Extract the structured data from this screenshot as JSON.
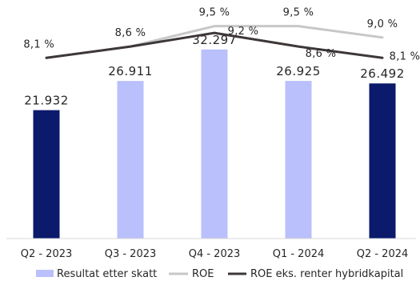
{
  "chart_data": {
    "type": "bar",
    "categories": [
      "Q2 - 2023",
      "Q3 - 2023",
      "Q4 - 2023",
      "Q1 - 2024",
      "Q2 - 2024"
    ],
    "series": [
      {
        "name": "Resultat etter skatt",
        "type": "bar",
        "values": [
          21932,
          26911,
          32297,
          26925,
          26492
        ],
        "labels": [
          "21.932",
          "26.911",
          "32.297",
          "26.925",
          "26.492"
        ],
        "colors": [
          "#0b1a6b",
          "#b9c0fb",
          "#b9c0fb",
          "#b9c0fb",
          "#0b1a6b"
        ]
      },
      {
        "name": "ROE",
        "type": "line",
        "color": "#c7c7c7",
        "values": [
          8.1,
          8.6,
          9.5,
          9.5,
          9.0
        ],
        "labels": [
          "8,1 %",
          "8,6 %",
          "9,5 %",
          "9,5 %",
          "9,0 %"
        ]
      },
      {
        "name": "ROE eks. renter hybridkapital",
        "type": "line",
        "color": "#3d3837",
        "values": [
          8.1,
          8.6,
          9.2,
          8.6,
          8.1
        ],
        "labels": [
          "",
          "",
          "9,2 %",
          "8,6 %",
          "8,1 %"
        ]
      }
    ],
    "title": "",
    "xlabel": "",
    "ylabel": "",
    "ylim": [
      0,
      35000
    ],
    "y2lim": [
      5.0,
      9.7
    ],
    "grid": false,
    "legend": "bottom"
  }
}
